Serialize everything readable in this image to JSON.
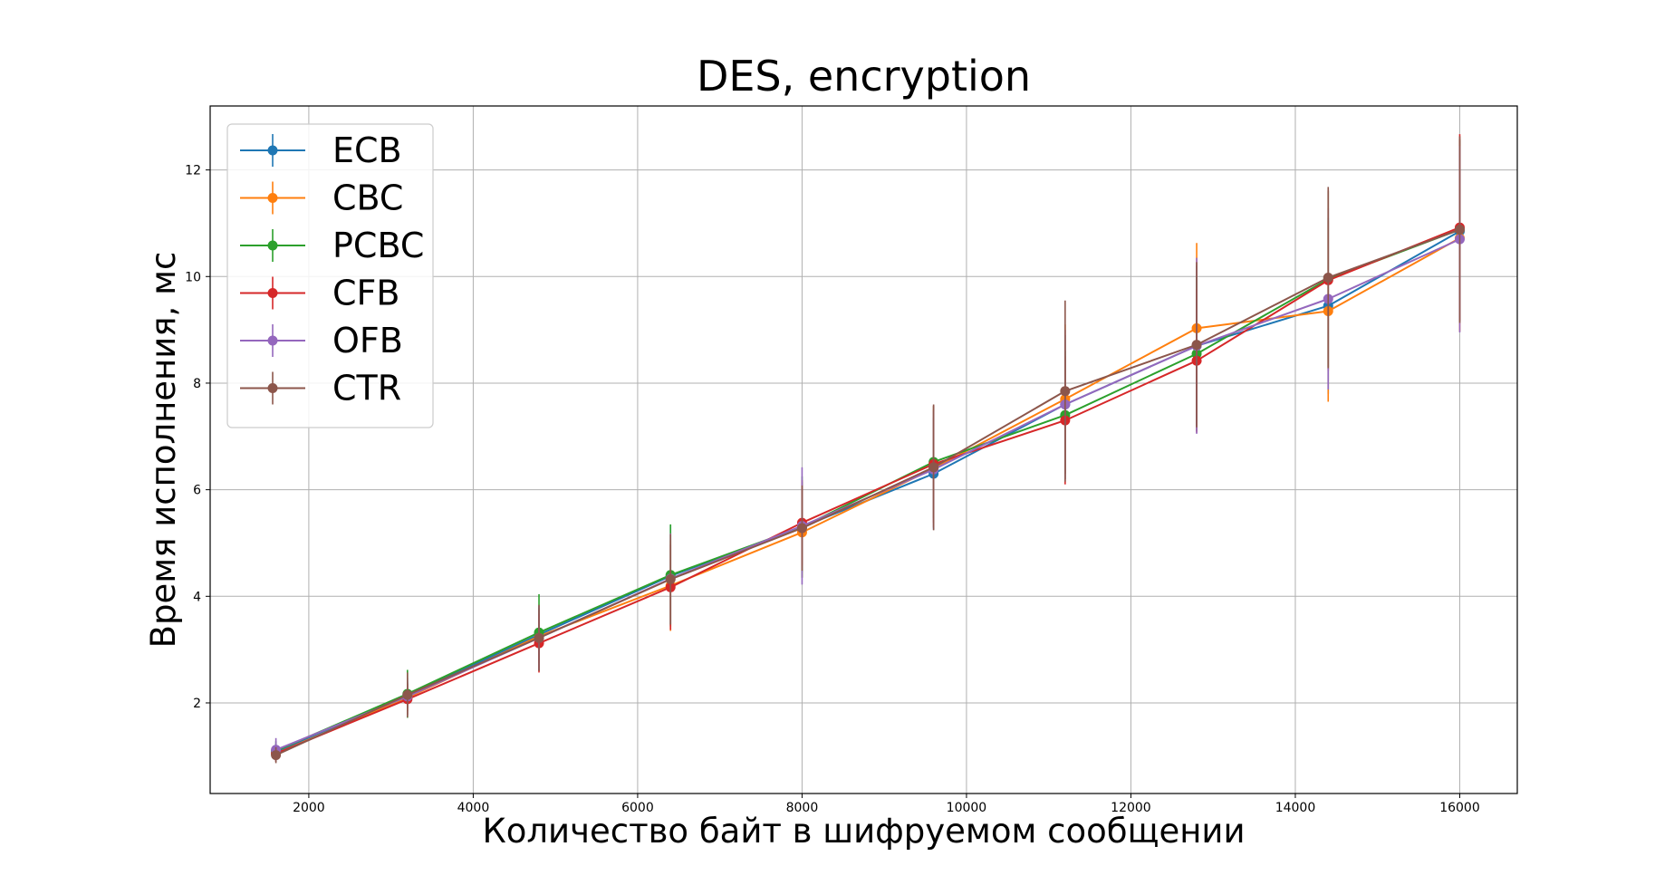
{
  "chart_data": {
    "type": "line",
    "title": "DES, encryption",
    "xlabel": "Количество байт в шифруемом сообщении",
    "ylabel": "Время исполнения, мс",
    "xlim": [
      800,
      16700
    ],
    "ylim": [
      0.3,
      13.2
    ],
    "xticks": [
      2000,
      4000,
      6000,
      8000,
      10000,
      12000,
      14000,
      16000
    ],
    "yticks": [
      2,
      4,
      6,
      8,
      10,
      12
    ],
    "grid": true,
    "legend_position": "top-left",
    "x": [
      1600,
      3200,
      4800,
      6400,
      8000,
      9600,
      11200,
      12800,
      14400,
      16000
    ],
    "series": [
      {
        "name": "ECB",
        "color": "#1f77b4",
        "values": [
          1.08,
          2.15,
          3.28,
          4.38,
          5.3,
          6.3,
          7.6,
          8.7,
          9.45,
          10.85
        ],
        "errors": [
          0.15,
          0.25,
          0.5,
          0.95,
          0.85,
          1.05,
          1.3,
          1.5,
          1.65,
          1.7
        ]
      },
      {
        "name": "CBC",
        "color": "#ff7f0e",
        "values": [
          1.05,
          2.1,
          3.25,
          4.2,
          5.2,
          6.4,
          7.7,
          9.03,
          9.35,
          10.72
        ],
        "errors": [
          0.15,
          0.25,
          0.5,
          0.85,
          0.85,
          1.1,
          1.4,
          1.6,
          1.7,
          1.75
        ]
      },
      {
        "name": "PCBC",
        "color": "#2ca02c",
        "values": [
          1.1,
          2.17,
          3.32,
          4.4,
          5.3,
          6.52,
          7.4,
          8.55,
          9.95,
          10.88
        ],
        "errors": [
          0.18,
          0.45,
          0.72,
          0.95,
          0.95,
          1.05,
          1.2,
          1.45,
          1.65,
          1.7
        ]
      },
      {
        "name": "CFB",
        "color": "#d62728",
        "values": [
          1.05,
          2.07,
          3.12,
          4.17,
          5.38,
          6.48,
          7.3,
          8.42,
          9.93,
          10.92
        ],
        "errors": [
          0.15,
          0.3,
          0.55,
          0.8,
          0.8,
          1.1,
          1.2,
          1.35,
          1.7,
          1.75
        ]
      },
      {
        "name": "OFB",
        "color": "#9467bd",
        "values": [
          1.12,
          2.12,
          3.22,
          4.33,
          5.32,
          6.38,
          7.6,
          8.7,
          9.58,
          10.7
        ],
        "errors": [
          0.22,
          0.35,
          0.6,
          0.85,
          1.1,
          1.1,
          1.4,
          1.65,
          1.7,
          1.75
        ]
      },
      {
        "name": "CTR",
        "color": "#8c564b",
        "values": [
          1.02,
          2.15,
          3.22,
          4.32,
          5.28,
          6.42,
          7.85,
          8.72,
          9.98,
          10.88
        ],
        "errors": [
          0.15,
          0.42,
          0.62,
          0.85,
          0.8,
          1.18,
          1.7,
          1.55,
          1.7,
          1.75
        ]
      }
    ]
  }
}
